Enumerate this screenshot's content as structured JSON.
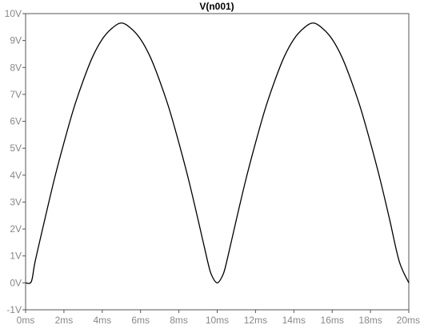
{
  "chart_data": {
    "type": "line",
    "title": "V(n001)",
    "xlabel": "",
    "ylabel": "",
    "xlim": [
      0,
      20
    ],
    "ylim": [
      -1,
      10
    ],
    "x_ticks": [
      0,
      2,
      4,
      6,
      8,
      10,
      12,
      14,
      16,
      18,
      20
    ],
    "x_tick_labels": [
      "0ms",
      "2ms",
      "4ms",
      "6ms",
      "8ms",
      "10ms",
      "12ms",
      "14ms",
      "16ms",
      "18ms",
      "20ms"
    ],
    "y_ticks": [
      -1,
      0,
      1,
      2,
      3,
      4,
      5,
      6,
      7,
      8,
      9,
      10
    ],
    "y_tick_labels": [
      "-1V",
      "0V",
      "1V",
      "2V",
      "3V",
      "4V",
      "5V",
      "6V",
      "7V",
      "8V",
      "9V",
      "10V"
    ],
    "grid": false,
    "legend": "none",
    "series": [
      {
        "color": "#000000",
        "x": [
          0,
          0.3,
          0.5,
          1,
          1.5,
          2,
          2.5,
          3,
          3.5,
          4,
          4.5,
          5,
          5.5,
          6,
          6.5,
          7,
          7.5,
          8,
          8.5,
          9,
          9.5,
          9.7,
          10,
          10.3,
          10.5,
          11,
          11.5,
          12,
          12.5,
          13,
          13.5,
          14,
          14.5,
          15,
          15.5,
          16,
          16.5,
          17,
          17.5,
          18,
          18.5,
          19,
          19.5,
          20
        ],
        "y": [
          0,
          0.05,
          0.8,
          2.35,
          3.85,
          5.2,
          6.45,
          7.5,
          8.4,
          9.05,
          9.45,
          9.65,
          9.45,
          9.05,
          8.4,
          7.5,
          6.45,
          5.2,
          3.85,
          2.35,
          0.8,
          0.3,
          0,
          0.3,
          0.8,
          2.35,
          3.85,
          5.2,
          6.45,
          7.5,
          8.4,
          9.05,
          9.45,
          9.65,
          9.45,
          9.05,
          8.4,
          7.5,
          6.45,
          5.2,
          3.85,
          2.35,
          0.8,
          0
        ]
      }
    ]
  }
}
